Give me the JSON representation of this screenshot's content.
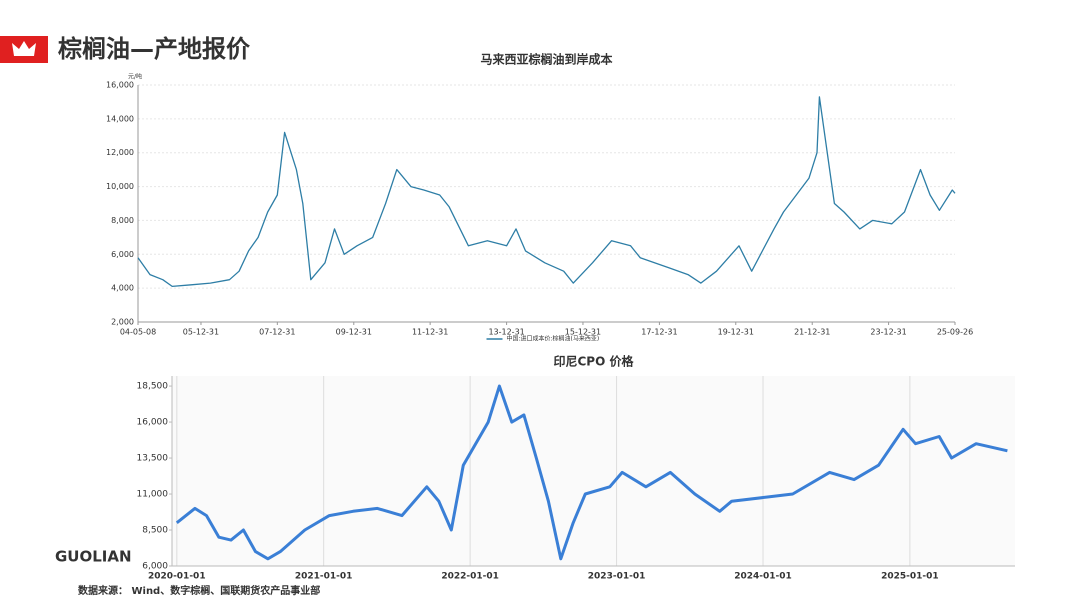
{
  "header": {
    "title": "棕榈油—产地报价"
  },
  "brand": "GUOLIAN",
  "source": "数据来源： Wind、数字棕榈、国联期货农产品事业部",
  "chart_data": [
    {
      "type": "line",
      "title": "马来西亚棕榈油到岸成本",
      "y_unit": "元/吨",
      "x": [
        "2004-05-08",
        "2004-08-31",
        "2004-12-31",
        "2005-03-31",
        "2005-09-30",
        "2006-03-31",
        "2006-09-30",
        "2006-12-31",
        "2007-03-31",
        "2007-06-30",
        "2007-09-30",
        "2007-12-31",
        "2008-03-10",
        "2008-06-30",
        "2008-08-31",
        "2008-11-15",
        "2009-03-31",
        "2009-06-30",
        "2009-09-30",
        "2010-01-31",
        "2010-06-30",
        "2010-10-31",
        "2011-02-15",
        "2011-06-30",
        "2011-10-31",
        "2012-03-31",
        "2012-06-30",
        "2012-12-31",
        "2013-06-30",
        "2013-12-31",
        "2014-03-31",
        "2014-06-30",
        "2014-12-31",
        "2015-06-30",
        "2015-09-30",
        "2016-03-31",
        "2016-09-30",
        "2017-03-31",
        "2017-06-30",
        "2018-03-31",
        "2018-09-30",
        "2019-01-31",
        "2019-06-30",
        "2020-01-31",
        "2020-05-31",
        "2020-12-31",
        "2021-03-31",
        "2021-11-30",
        "2022-02-15",
        "2022-03-10",
        "2022-07-31",
        "2022-10-31",
        "2023-03-31",
        "2023-07-31",
        "2024-01-31",
        "2024-05-31",
        "2024-10-31",
        "2025-01-31",
        "2025-04-30",
        "2025-08-31",
        "2025-09-26"
      ],
      "series": [
        {
          "name": "中国:进口成本价:棕榈油(马来西亚)",
          "color": "#2e7ea6",
          "values": [
            5800,
            4800,
            4500,
            4100,
            4200,
            4300,
            4500,
            5000,
            6200,
            7000,
            8500,
            9500,
            13200,
            11000,
            9000,
            4500,
            5500,
            7500,
            6000,
            6500,
            7000,
            9000,
            11000,
            10000,
            9800,
            9500,
            8800,
            6500,
            6800,
            6500,
            7500,
            6200,
            5500,
            5000,
            4300,
            5500,
            6800,
            6500,
            5800,
            5200,
            4800,
            4300,
            5000,
            6500,
            5000,
            7500,
            8500,
            10500,
            12000,
            15300,
            9000,
            8500,
            7500,
            8000,
            7800,
            8500,
            11000,
            9500,
            8600,
            9800,
            9600
          ]
        }
      ],
      "xlim": [
        "2004-05-08",
        "2025-09-26"
      ],
      "xticks": [
        {
          "value": "2004-05-08",
          "label": "04-05-08"
        },
        {
          "value": "2005-12-31",
          "label": "05-12-31"
        },
        {
          "value": "2007-12-31",
          "label": "07-12-31"
        },
        {
          "value": "2009-12-31",
          "label": "09-12-31"
        },
        {
          "value": "2011-12-31",
          "label": "11-12-31"
        },
        {
          "value": "2013-12-31",
          "label": "13-12-31"
        },
        {
          "value": "2015-12-31",
          "label": "15-12-31"
        },
        {
          "value": "2017-12-31",
          "label": "17-12-31"
        },
        {
          "value": "2019-12-31",
          "label": "19-12-31"
        },
        {
          "value": "2021-12-31",
          "label": "21-12-31"
        },
        {
          "value": "2023-12-31",
          "label": "23-12-31"
        },
        {
          "value": "2025-09-26",
          "label": "25-09-26"
        }
      ],
      "ylim": [
        2000,
        16000
      ],
      "yticks": [
        {
          "value": 2000,
          "label": "2,000"
        },
        {
          "value": 4000,
          "label": "4,000"
        },
        {
          "value": 6000,
          "label": "6,000"
        },
        {
          "value": 8000,
          "label": "8,000"
        },
        {
          "value": 10000,
          "label": "10,000"
        },
        {
          "value": 12000,
          "label": "12,000"
        },
        {
          "value": 14000,
          "label": "14,000"
        },
        {
          "value": 16000,
          "label": "16,000"
        }
      ],
      "grid": "y",
      "legend": "bottom"
    },
    {
      "type": "line",
      "title": "印尼CPO 价格",
      "x": [
        "2020-01-01",
        "2020-02-15",
        "2020-03-15",
        "2020-04-15",
        "2020-05-15",
        "2020-06-15",
        "2020-07-15",
        "2020-08-15",
        "2020-09-15",
        "2020-11-15",
        "2021-01-15",
        "2021-03-15",
        "2021-05-15",
        "2021-07-15",
        "2021-09-15",
        "2021-10-15",
        "2021-11-15",
        "2021-12-15",
        "2022-01-15",
        "2022-02-15",
        "2022-03-15",
        "2022-04-15",
        "2022-05-15",
        "2022-06-15",
        "2022-07-15",
        "2022-08-15",
        "2022-09-15",
        "2022-10-15",
        "2022-12-15",
        "2023-01-15",
        "2023-03-15",
        "2023-05-15",
        "2023-07-15",
        "2023-09-15",
        "2023-10-15",
        "2024-01-15",
        "2024-03-15",
        "2024-06-15",
        "2024-08-15",
        "2024-10-15",
        "2024-12-15",
        "2025-01-15",
        "2025-03-15",
        "2025-04-15",
        "2025-06-15",
        "2025-09-01"
      ],
      "series": [
        {
          "color": "#3a7fd6",
          "values": [
            9000,
            10000,
            9500,
            8000,
            7800,
            8500,
            7000,
            6500,
            7000,
            8500,
            9500,
            9800,
            10000,
            9500,
            11500,
            10500,
            8500,
            13000,
            14500,
            16000,
            18500,
            16000,
            16500,
            13500,
            10500,
            6500,
            9000,
            11000,
            11500,
            12500,
            11500,
            12500,
            11000,
            9800,
            10500,
            10800,
            11000,
            12500,
            12000,
            13000,
            15500,
            14500,
            15000,
            13500,
            14500,
            14000
          ]
        }
      ],
      "xlim": [
        "2019-12-20",
        "2025-09-20"
      ],
      "xticks": [
        {
          "value": "2020-01-01",
          "label": "2020-01-01"
        },
        {
          "value": "2021-01-01",
          "label": "2021-01-01"
        },
        {
          "value": "2022-01-01",
          "label": "2022-01-01"
        },
        {
          "value": "2023-01-01",
          "label": "2023-01-01"
        },
        {
          "value": "2024-01-01",
          "label": "2024-01-01"
        },
        {
          "value": "2025-01-01",
          "label": "2025-01-01"
        }
      ],
      "ylim": [
        6000,
        19200
      ],
      "yticks": [
        {
          "value": 6000,
          "label": "6,000"
        },
        {
          "value": 8500,
          "label": "8,500"
        },
        {
          "value": 11000,
          "label": "11,000"
        },
        {
          "value": 13500,
          "label": "13,500"
        },
        {
          "value": 16000,
          "label": "16,000"
        },
        {
          "value": 18500,
          "label": "18,500"
        }
      ],
      "grid": "x"
    }
  ]
}
